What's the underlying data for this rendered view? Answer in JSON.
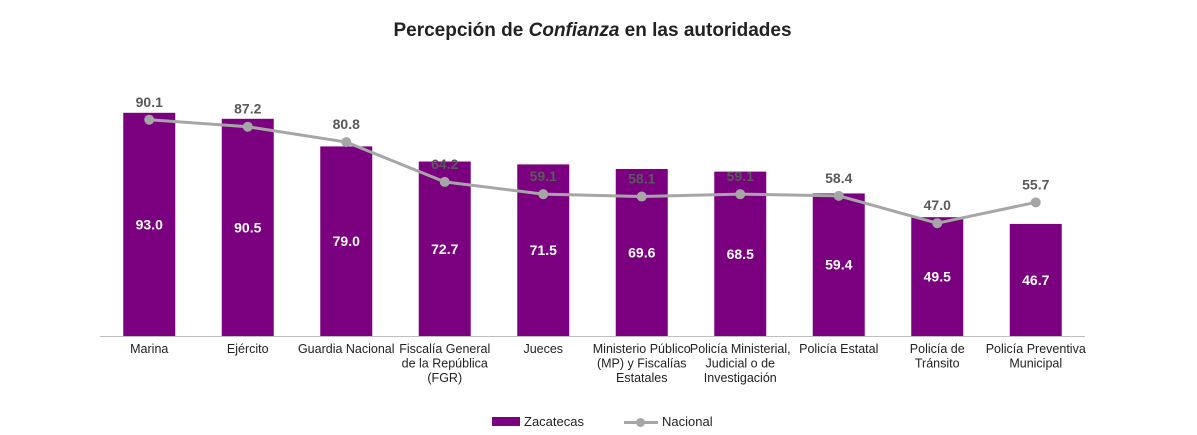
{
  "title_prefix": "Percepción de ",
  "title_emphasis": "Confianza",
  "title_suffix": " en las autoridades",
  "colors": {
    "zacatecas": "#7b0080",
    "nacional": "#a6a6a6"
  },
  "chart_data": {
    "type": "bar",
    "title": "Percepción de Confianza en las autoridades",
    "xlabel": "",
    "ylabel": "",
    "ylim": [
      0,
      100
    ],
    "grid": false,
    "legend_position": "bottom",
    "categories": [
      "Marina",
      "Ejército",
      "Guardia Nacional",
      "Fiscalía General de la República (FGR)",
      "Jueces",
      "Ministerio Público (MP) y Fiscalías Estatales",
      "Policía Ministerial, Judicial o de Investigación",
      "Policía Estatal",
      "Policía de Tránsito",
      "Policía Preventiva Municipal"
    ],
    "category_lines": [
      [
        "Marina"
      ],
      [
        "Ejército"
      ],
      [
        "Guardia Nacional"
      ],
      [
        "Fiscalía General",
        "de la República",
        "(FGR)"
      ],
      [
        "Jueces"
      ],
      [
        "Ministerio Público",
        "(MP) y Fiscalías",
        "Estatales"
      ],
      [
        "Policía Ministerial,",
        "Judicial o de",
        "Investigación"
      ],
      [
        "Policía Estatal"
      ],
      [
        "Policía de",
        "Tránsito"
      ],
      [
        "Policía Preventiva",
        "Municipal"
      ]
    ],
    "series": [
      {
        "name": "Zacatecas",
        "type": "bar",
        "values": [
          93.0,
          90.5,
          79.0,
          72.7,
          71.5,
          69.6,
          68.5,
          59.4,
          49.5,
          46.7
        ]
      },
      {
        "name": "Nacional",
        "type": "line",
        "values": [
          90.1,
          87.2,
          80.8,
          64.2,
          59.1,
          58.1,
          59.1,
          58.4,
          47.0,
          55.7
        ]
      }
    ]
  }
}
